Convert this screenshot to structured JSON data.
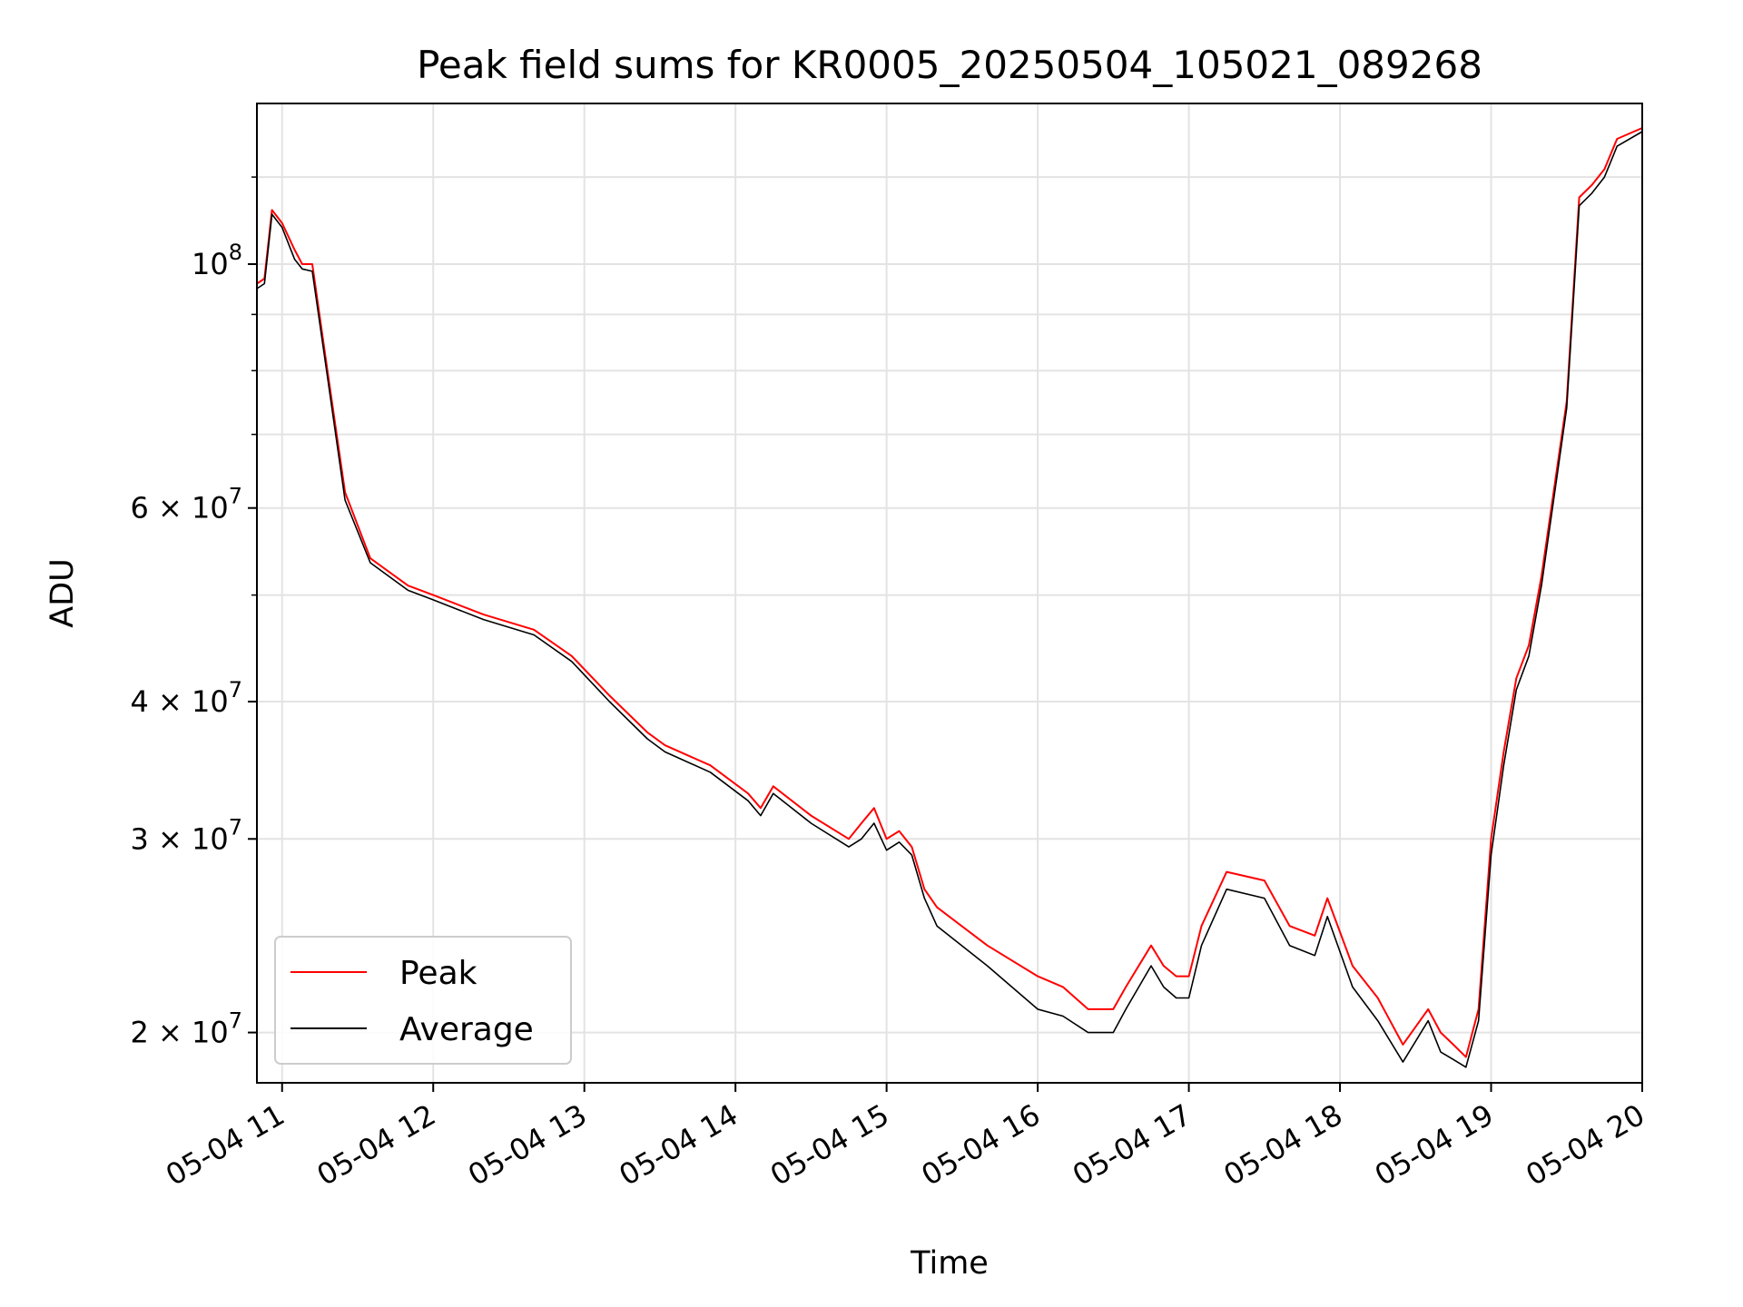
{
  "chart_data": {
    "type": "line",
    "title": "Peak field sums for KR0005_20250504_105021_089268",
    "xlabel": "Time",
    "ylabel": "ADU",
    "yscale": "log",
    "xlim": [
      "05-04 10:50",
      "05-04 20:00"
    ],
    "ylim": [
      18000000,
      140000000
    ],
    "grid": true,
    "legend_position": "lower left",
    "x_ticks": [
      "05-04 11",
      "05-04 12",
      "05-04 13",
      "05-04 14",
      "05-04 15",
      "05-04 16",
      "05-04 17",
      "05-04 18",
      "05-04 19",
      "05-04 20"
    ],
    "y_tick_labels": [
      {
        "value": 100000000,
        "base": "10",
        "exp": "8"
      },
      {
        "value": 60000000,
        "base": "6 × 10",
        "exp": "7"
      },
      {
        "value": 40000000,
        "base": "4 × 10",
        "exp": "7"
      },
      {
        "value": 30000000,
        "base": "3 × 10",
        "exp": "7"
      },
      {
        "value": 20000000,
        "base": "2 × 10",
        "exp": "7"
      }
    ],
    "y_minor_grid": [
      50000000,
      70000000,
      80000000,
      90000000,
      120000000
    ],
    "x": [
      "05-04 10:50",
      "05-04 10:53",
      "05-04 10:56",
      "05-04 11:00",
      "05-04 11:05",
      "05-04 11:08",
      "05-04 11:12",
      "05-04 11:18",
      "05-04 11:25",
      "05-04 11:35",
      "05-04 11:50",
      "05-04 12:00",
      "05-04 12:20",
      "05-04 12:40",
      "05-04 12:55",
      "05-04 13:10",
      "05-04 13:25",
      "05-04 13:32",
      "05-04 13:50",
      "05-04 14:05",
      "05-04 14:10",
      "05-04 14:15",
      "05-04 14:30",
      "05-04 14:45",
      "05-04 14:50",
      "05-04 14:55",
      "05-04 15:00",
      "05-04 15:05",
      "05-04 15:10",
      "05-04 15:15",
      "05-04 15:20",
      "05-04 15:40",
      "05-04 16:00",
      "05-04 16:10",
      "05-04 16:20",
      "05-04 16:30",
      "05-04 16:35",
      "05-04 16:45",
      "05-04 16:50",
      "05-04 16:55",
      "05-04 17:00",
      "05-04 17:05",
      "05-04 17:15",
      "05-04 17:30",
      "05-04 17:40",
      "05-04 17:50",
      "05-04 17:55",
      "05-04 18:05",
      "05-04 18:15",
      "05-04 18:25",
      "05-04 18:35",
      "05-04 18:40",
      "05-04 18:45",
      "05-04 18:50",
      "05-04 18:55",
      "05-04 19:00",
      "05-04 19:05",
      "05-04 19:10",
      "05-04 19:15",
      "05-04 19:20",
      "05-04 19:30",
      "05-04 19:35",
      "05-04 19:40",
      "05-04 19:45",
      "05-04 19:50",
      "05-04 20:00"
    ],
    "series": [
      {
        "name": "Peak",
        "color": "#ff0000",
        "values": [
          96000000,
          97000000,
          112000000,
          109000000,
          103000000,
          100000000,
          100000000,
          80000000,
          62000000,
          54000000,
          51000000,
          50000000,
          48000000,
          46500000,
          44000000,
          40500000,
          37500000,
          36500000,
          35000000,
          33000000,
          32000000,
          33500000,
          31500000,
          30000000,
          31000000,
          32000000,
          30000000,
          30500000,
          29500000,
          27000000,
          26000000,
          24000000,
          22500000,
          22000000,
          21000000,
          21000000,
          22000000,
          24000000,
          23000000,
          22500000,
          22500000,
          25000000,
          28000000,
          27500000,
          25000000,
          24500000,
          26500000,
          23000000,
          21500000,
          19500000,
          21000000,
          20000000,
          19500000,
          19000000,
          21000000,
          30000000,
          36000000,
          42000000,
          45000000,
          52000000,
          75000000,
          115000000,
          118000000,
          122000000,
          130000000,
          133000000
        ]
      },
      {
        "name": "Average",
        "color": "#000000",
        "values": [
          95000000,
          96000000,
          111000000,
          108000000,
          101000000,
          99000000,
          98500000,
          79000000,
          61000000,
          53500000,
          50500000,
          49500000,
          47500000,
          46000000,
          43500000,
          40000000,
          37000000,
          36000000,
          34500000,
          32500000,
          31500000,
          33000000,
          31000000,
          29500000,
          30000000,
          31000000,
          29300000,
          29800000,
          29000000,
          26500000,
          25000000,
          23000000,
          21000000,
          20700000,
          20000000,
          20000000,
          21000000,
          23000000,
          22000000,
          21500000,
          21500000,
          24000000,
          27000000,
          26500000,
          24000000,
          23500000,
          25500000,
          22000000,
          20500000,
          18800000,
          20500000,
          19200000,
          18900000,
          18600000,
          20500000,
          29000000,
          35000000,
          41000000,
          44000000,
          51000000,
          74000000,
          113000000,
          116000000,
          120000000,
          128000000,
          132000000
        ]
      }
    ]
  }
}
